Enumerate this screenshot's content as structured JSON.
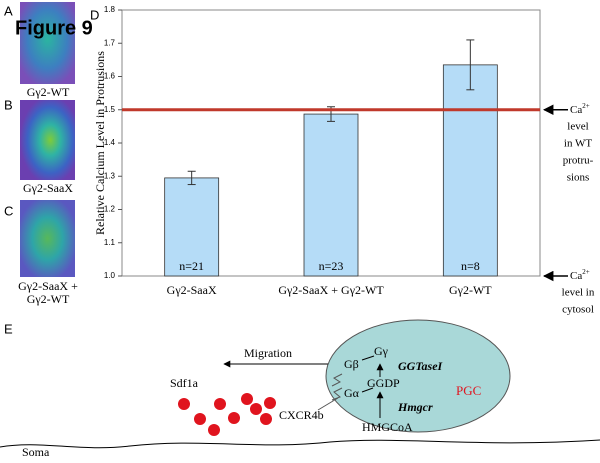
{
  "figure_title": "Figure 9",
  "panel_labels": [
    "A",
    "B",
    "C",
    "D",
    "E"
  ],
  "images": [
    {
      "caption": [
        "Gγ2-WT"
      ]
    },
    {
      "caption": [
        "Gγ2-SaaX"
      ]
    },
    {
      "caption": [
        "Gγ2-SaaX +",
        "Gγ2-WT"
      ]
    }
  ],
  "chart_data": {
    "type": "bar",
    "y_label": "Relative Calcium Level in Protrusions",
    "categories": [
      "Gγ2-SaaX",
      "Gγ2-SaaX + Gγ2-WT",
      "Gγ2-WT"
    ],
    "values": [
      1.295,
      1.487,
      1.635
    ],
    "errors": [
      0.02,
      0.022,
      0.075
    ],
    "bar_labels": [
      "n=21",
      "n=23",
      "n=8"
    ],
    "color": "#b5dcf7",
    "ylim": [
      1.0,
      1.8
    ],
    "yticks": [
      {
        "value": 1.0,
        "label": "1.0"
      },
      1.1,
      1.2,
      1.3,
      1.4,
      1.5,
      1.6,
      1.7,
      1.8
    ],
    "reference_line": {
      "value": 1.5,
      "color": "#c0392b"
    },
    "side_notes": [
      {
        "value": 1.5,
        "base": "Ca",
        "sup": "2+",
        "lines": [
          "level",
          "in WT",
          "protru-",
          "sions"
        ]
      },
      {
        "value": 1.0,
        "base": "Ca",
        "sup": "2+",
        "lines": [
          "level in",
          "cytosol"
        ]
      }
    ]
  },
  "diagram": {
    "migration": "Migration",
    "sdf1a": "Sdf1a",
    "cxcr4b": "CXCR4b",
    "soma": "Soma",
    "pgc": "PGC",
    "g_beta": "Gβ",
    "g_gamma": "Gγ",
    "g_alpha": "Gα",
    "ggtase": "GGTaseI",
    "ggdp": "GGDP",
    "hmgcr": "Hmgcr",
    "hmgcoa": "HMGCoA"
  }
}
